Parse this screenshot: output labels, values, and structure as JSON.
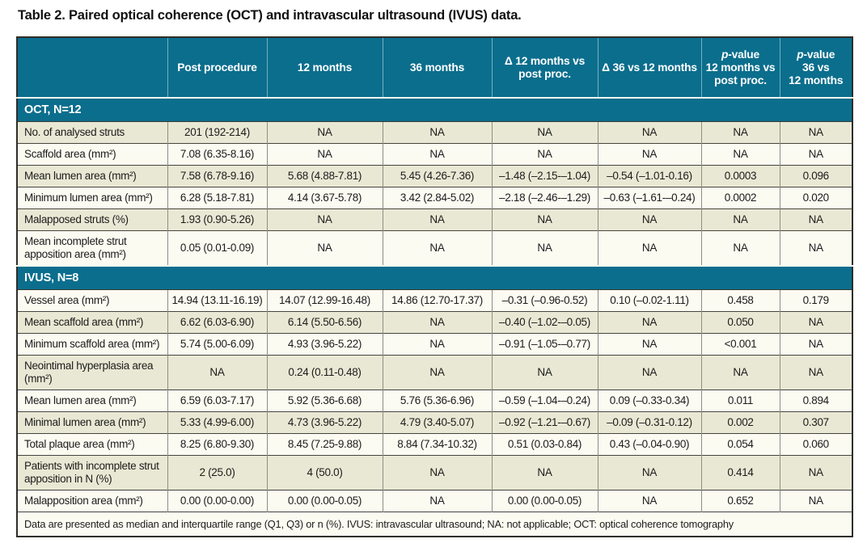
{
  "page": {
    "title": "Table 2. Paired optical coherence (OCT) and intravascular ultrasound (IVUS) data."
  },
  "colors": {
    "header_teal": "#0b6e8d",
    "row_shaded": "#e9e8d4",
    "row_plain": "#fcfbf2",
    "header_text": "#ffffff"
  },
  "table": {
    "columns": [
      {
        "lines": [
          ""
        ]
      },
      {
        "lines": [
          "Post procedure"
        ]
      },
      {
        "lines": [
          "12 months"
        ]
      },
      {
        "lines": [
          "36 months"
        ]
      },
      {
        "lines": [
          "Δ 12 months vs",
          "post proc."
        ]
      },
      {
        "lines": [
          "Δ 36 vs 12 months"
        ]
      },
      {
        "italic_lead": "p",
        "lead_rest": "-value",
        "lines": [
          "12 months vs",
          "post proc."
        ]
      },
      {
        "italic_lead": "p",
        "lead_rest": "-value",
        "lines": [
          "36 vs",
          "12 months"
        ]
      }
    ],
    "sections": [
      {
        "title": "OCT, N=12",
        "first_row_shaded": true,
        "rows": [
          {
            "label": "No. of analysed struts",
            "cells": [
              "201 (192-214)",
              "NA",
              "NA",
              "NA",
              "NA",
              "NA",
              "NA"
            ]
          },
          {
            "label": "Scaffold area (mm²)",
            "cells": [
              "7.08 (6.35-8.16)",
              "NA",
              "NA",
              "NA",
              "NA",
              "NA",
              "NA"
            ]
          },
          {
            "label": "Mean lumen area (mm²)",
            "cells": [
              "7.58 (6.78-9.16)",
              "5.68 (4.88-7.81)",
              "5.45 (4.26-7.36)",
              "–1.48 (–2.15-–1.04)",
              "–0.54 (–1.01-0.16)",
              "0.0003",
              "0.096"
            ]
          },
          {
            "label": "Minimum lumen area (mm²)",
            "cells": [
              "6.28 (5.18-7.81)",
              "4.14 (3.67-5.78)",
              "3.42 (2.84-5.02)",
              "–2.18 (–2.46-–1.29)",
              "–0.63 (–1.61-–0.24)",
              "0.0002",
              "0.020"
            ]
          },
          {
            "label": "Malapposed struts (%)",
            "cells": [
              "1.93 (0.90-5.26)",
              "NA",
              "NA",
              "NA",
              "NA",
              "NA",
              "NA"
            ]
          },
          {
            "label": "Mean incomplete strut apposition area (mm²)",
            "cells": [
              "0.05 (0.01-0.09)",
              "NA",
              "NA",
              "NA",
              "NA",
              "NA",
              "NA"
            ]
          }
        ]
      },
      {
        "title": "IVUS, N=8",
        "first_row_shaded": false,
        "rows": [
          {
            "label": "Vessel area (mm²)",
            "cells": [
              "14.94 (13.11-16.19)",
              "14.07 (12.99-16.48)",
              "14.86 (12.70-17.37)",
              "–0.31 (–0.96-0.52)",
              "0.10 (–0.02-1.11)",
              "0.458",
              "0.179"
            ]
          },
          {
            "label": "Mean scaffold area (mm²)",
            "cells": [
              "6.62 (6.03-6.90)",
              "6.14 (5.50-6.56)",
              "NA",
              "–0.40 (–1.02-–0.05)",
              "NA",
              "0.050",
              "NA"
            ]
          },
          {
            "label": "Minimum scaffold area (mm²)",
            "cells": [
              "5.74 (5.00-6.09)",
              "4.93 (3.96-5.22)",
              "NA",
              "–0.91 (–1.05-–0.77)",
              "NA",
              "<0.001",
              "NA"
            ]
          },
          {
            "label": "Neointimal hyperplasia area (mm²)",
            "cells": [
              "NA",
              "0.24 (0.11-0.48)",
              "NA",
              "NA",
              "NA",
              "NA",
              "NA"
            ]
          },
          {
            "label": "Mean lumen area (mm²)",
            "cells": [
              "6.59 (6.03-7.17)",
              "5.92 (5.36-6.68)",
              "5.76 (5.36-6.96)",
              "–0.59 (–1.04-–0.24)",
              "0.09 (–0.33-0.34)",
              "0.011",
              "0.894"
            ]
          },
          {
            "label": "Minimal lumen area (mm²)",
            "cells": [
              "5.33 (4.99-6.00)",
              "4.73 (3.96-5.22)",
              "4.79 (3.40-5.07)",
              "–0.92 (–1.21-–0.67)",
              "–0.09 (–0.31-0.12)",
              "0.002",
              "0.307"
            ]
          },
          {
            "label": "Total plaque area (mm²)",
            "cells": [
              "8.25 (6.80-9.30)",
              "8.45 (7.25-9.88)",
              "8.84 (7.34-10.32)",
              "0.51 (0.03-0.84)",
              "0.43 (–0.04-0.90)",
              "0.054",
              "0.060"
            ]
          },
          {
            "label": "Patients with incomplete strut apposition in N (%)",
            "cells": [
              "2 (25.0)",
              "4 (50.0)",
              "NA",
              "NA",
              "NA",
              "0.414",
              "NA"
            ]
          },
          {
            "label": "Malapposition area (mm²)",
            "cells": [
              "0.00 (0.00-0.00)",
              "0.00 (0.00-0.05)",
              "NA",
              "0.00 (0.00-0.05)",
              "NA",
              "0.652",
              "NA"
            ]
          }
        ]
      }
    ],
    "footnote": "Data are presented as median and interquartile range (Q1, Q3) or n (%). IVUS: intravascular ultrasound; NA: not applicable; OCT: optical coherence tomography"
  }
}
